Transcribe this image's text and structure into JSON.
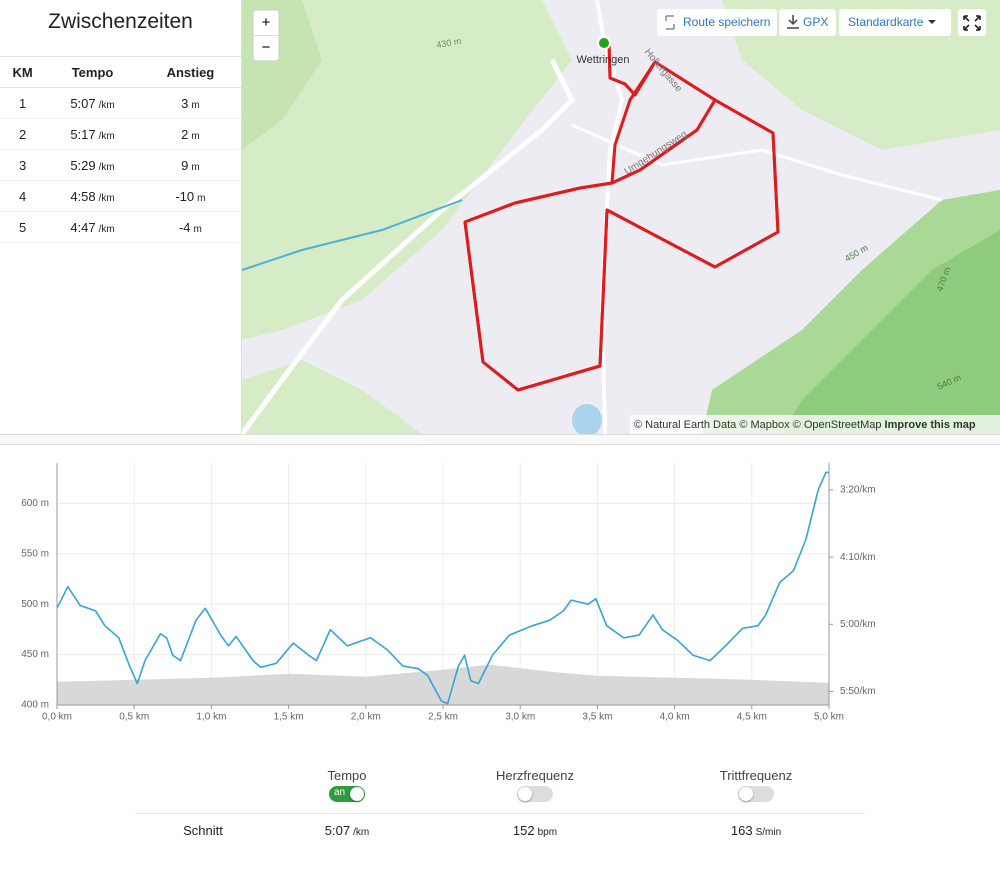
{
  "splits": {
    "title": "Zwischenzeiten",
    "columns": [
      "KM",
      "Tempo",
      "Anstieg"
    ],
    "rows": [
      [
        "1",
        "5:07",
        "/km",
        "3",
        "m"
      ],
      [
        "2",
        "5:17",
        "/km",
        "2",
        "m"
      ],
      [
        "3",
        "5:29",
        "/km",
        "9",
        "m"
      ],
      [
        "4",
        "4:58",
        "/km",
        "-10",
        "m"
      ],
      [
        "5",
        "4:47",
        "/km",
        "-4",
        "m"
      ]
    ]
  },
  "map": {
    "zoom_in": "+",
    "zoom_out": "−",
    "buttons": [
      "Route speichern",
      "GPX",
      "Standardkarte"
    ],
    "place": "Wettringen",
    "streets": [
      "Hollergasse",
      "Umgehungsweg"
    ],
    "contours": [
      "430 m",
      "450 m",
      "470 m",
      "540 m"
    ],
    "attribution": "© Natural Earth Data © Mapbox © OpenStreetMap",
    "improve": "Improve this map"
  },
  "chart_data": {
    "type": "line",
    "xlim": [
      0,
      5
    ],
    "xticks": [
      {
        "value": 0,
        "label": "0,0 km"
      },
      {
        "value": 0.5,
        "label": "0,5 km"
      },
      {
        "value": 1,
        "label": "1,0 km"
      },
      {
        "value": 1.5,
        "label": "1,5 km"
      },
      {
        "value": 2,
        "label": "2,0 km"
      },
      {
        "value": 2.5,
        "label": "2,5 km"
      },
      {
        "value": 3,
        "label": "3,0 km"
      },
      {
        "value": 3.5,
        "label": "3,5 km"
      },
      {
        "value": 4,
        "label": "4,0 km"
      },
      {
        "value": 4.5,
        "label": "4,5 km"
      },
      {
        "value": 5,
        "label": "5,0 km"
      }
    ],
    "ylim": [
      400,
      640
    ],
    "yticks": [
      {
        "value": 400,
        "label": "400 m"
      },
      {
        "value": 450,
        "label": "450 m"
      },
      {
        "value": 500,
        "label": "500 m"
      },
      {
        "value": 550,
        "label": "550 m"
      },
      {
        "value": 600,
        "label": "600 m"
      }
    ],
    "y2lim": [
      360,
      180
    ],
    "y2ticks": [
      {
        "value": 200,
        "label": "3:20/km"
      },
      {
        "value": 250,
        "label": "4:10/km"
      },
      {
        "value": 300,
        "label": "5:00/km"
      },
      {
        "value": 350,
        "label": "5:50/km"
      }
    ],
    "grid": true,
    "series": [
      {
        "type": "area",
        "color": "#d4d4d4",
        "axis": "y",
        "x": [
          0,
          0.5,
          1,
          1.5,
          2,
          2.5,
          2.8,
          3.2,
          3.5,
          4,
          4.5,
          5
        ],
        "values": [
          423,
          425,
          427,
          431,
          428,
          435,
          440,
          433,
          429,
          427,
          425,
          422
        ]
      },
      {
        "type": "line",
        "color": "#35a5d5",
        "axis": "y2",
        "x": [
          0,
          0.07,
          0.15,
          0.25,
          0.31,
          0.4,
          0.47,
          0.52,
          0.57,
          0.67,
          0.71,
          0.75,
          0.8,
          0.9,
          0.96,
          1.06,
          1.11,
          1.16,
          1.27,
          1.32,
          1.42,
          1.53,
          1.63,
          1.68,
          1.77,
          1.88,
          2.03,
          2.14,
          2.24,
          2.34,
          2.4,
          2.49,
          2.53,
          2.6,
          2.64,
          2.68,
          2.73,
          2.82,
          2.93,
          3.08,
          3.19,
          3.28,
          3.33,
          3.44,
          3.49,
          3.56,
          3.67,
          3.77,
          3.86,
          3.92,
          4.02,
          4.12,
          4.23,
          4.33,
          4.44,
          4.54,
          4.59,
          4.68,
          4.77,
          4.85,
          4.93,
          4.98,
          5
        ],
        "values": [
          288,
          272,
          286,
          290,
          301,
          310,
          331,
          344,
          327,
          307,
          310,
          323,
          327,
          297,
          288,
          308,
          316,
          309,
          327,
          332,
          329,
          314,
          323,
          327,
          304,
          316,
          310,
          319,
          331,
          333,
          338,
          357,
          359,
          331,
          323,
          342,
          344,
          323,
          308,
          301,
          297,
          290,
          282,
          285,
          281,
          301,
          310,
          308,
          293,
          304,
          312,
          323,
          327,
          316,
          303,
          301,
          293,
          269,
          260,
          237,
          200,
          187,
          187
        ]
      }
    ]
  },
  "summary": {
    "metrics": [
      "Tempo",
      "Herzfrequenz",
      "Trittfrequenz"
    ],
    "toggle_on": "an",
    "row_label": "Schnitt",
    "values": [
      [
        "5:07",
        "/km"
      ],
      [
        "152",
        "bpm"
      ],
      [
        "163",
        "S/min"
      ]
    ]
  }
}
